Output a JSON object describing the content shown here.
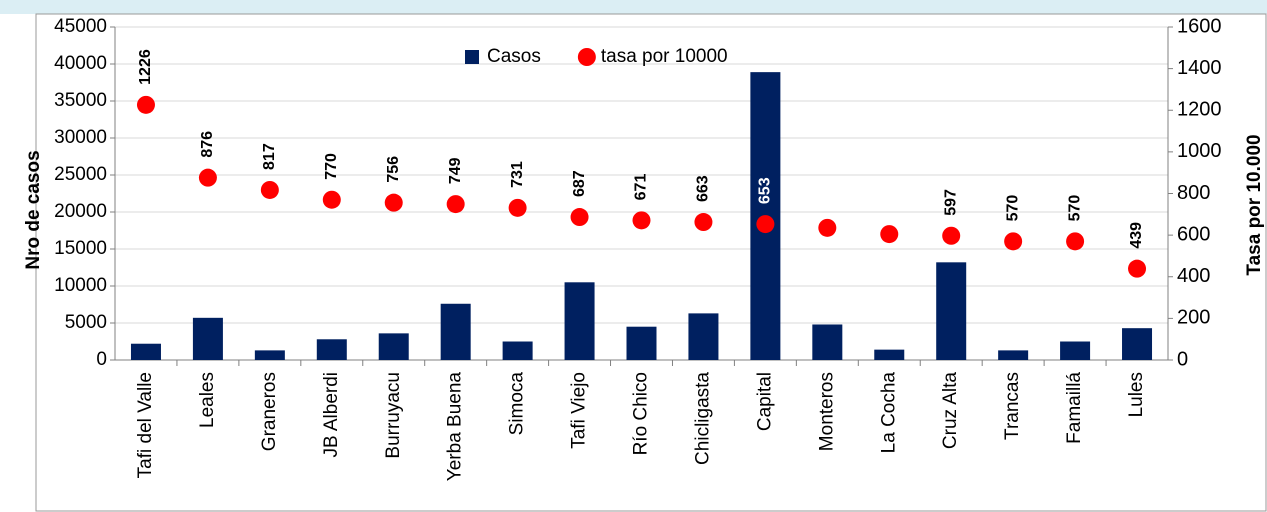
{
  "chart_data": {
    "type": "bar_dot",
    "y_label": "Nro de casos",
    "y2_label": "Tasa por 10.000",
    "categories": [
      "Tafi del Valle",
      "Leales",
      "Graneros",
      "JB Alberdi",
      "Burruyacu",
      "Yerba Buena",
      "Simoca",
      "Tafi Viejo",
      "Río Chico",
      "Chicligasta",
      "Capital",
      "Monteros",
      "La Cocha",
      "Cruz Alta",
      "Trancas",
      "Famaillá",
      "Lules"
    ],
    "series": [
      {
        "name": "Casos",
        "color": "#002060",
        "values": [
          2200,
          5700,
          1300,
          2800,
          3600,
          7600,
          2500,
          10500,
          4500,
          6300,
          38900,
          4800,
          1400,
          13200,
          1300,
          2500,
          4300
        ]
      },
      {
        "name": "tasa por 10000",
        "color": "#ff0000",
        "axis": "y2",
        "values": [
          1226,
          876,
          817,
          770,
          756,
          749,
          731,
          687,
          671,
          663,
          653,
          635,
          605,
          597,
          570,
          570,
          439
        ],
        "value_labels": [
          "1226",
          "876",
          "817",
          "770",
          "756",
          "749",
          "731",
          "687",
          "671",
          "663",
          "653",
          null,
          null,
          "597",
          "570",
          "570",
          "439"
        ]
      }
    ],
    "ylim": [
      0,
      45000
    ],
    "yticks": [
      0,
      5000,
      10000,
      15000,
      20000,
      25000,
      30000,
      35000,
      40000,
      45000
    ],
    "y2lim": [
      0,
      1600
    ],
    "y2ticks": [
      0,
      200,
      400,
      600,
      800,
      1000,
      1200,
      1400,
      1600
    ],
    "grid": true
  }
}
